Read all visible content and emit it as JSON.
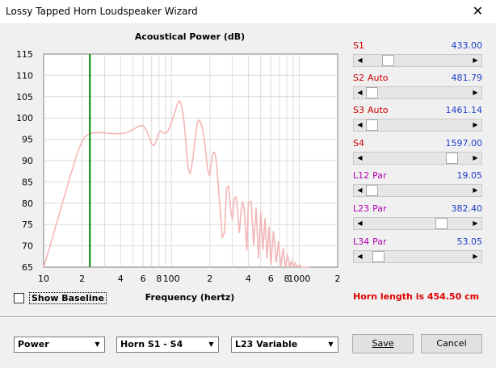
{
  "window": {
    "title": "Lossy Tapped Horn Loudspeaker Wizard",
    "close_glyph": "✕"
  },
  "chart_data": {
    "type": "line",
    "title": "Acoustical Power (dB)",
    "xlabel": "Frequency (hertz)",
    "ylabel": "",
    "x_scale": "log",
    "xlim": [
      10,
      2000
    ],
    "ylim": [
      65,
      115
    ],
    "grid": true,
    "yticks": [
      "115",
      "110",
      "105",
      "100",
      "95",
      "90",
      "85",
      "80",
      "75",
      "70",
      "65"
    ],
    "xticks": [
      {
        "v": 10,
        "label": "10"
      },
      {
        "v": 20,
        "label": "2"
      },
      {
        "v": 40,
        "label": "4"
      },
      {
        "v": 60,
        "label": "6"
      },
      {
        "v": 80,
        "label": "8"
      },
      {
        "v": 100,
        "label": "100"
      },
      {
        "v": 200,
        "label": "2"
      },
      {
        "v": 400,
        "label": "4"
      },
      {
        "v": 600,
        "label": "6"
      },
      {
        "v": 800,
        "label": "8"
      },
      {
        "v": 1000,
        "label": "1000"
      },
      {
        "v": 2000,
        "label": "2"
      }
    ],
    "marker_x": 23,
    "curve_color": "#f4b6b6",
    "marker_color": "#008000",
    "series": [
      {
        "x": [
          10,
          11,
          12,
          13,
          14,
          15,
          16,
          17,
          18,
          19,
          20,
          21,
          22,
          23,
          24,
          25,
          27,
          30,
          33,
          36,
          40,
          44,
          48,
          52,
          55,
          58,
          61,
          64,
          67,
          70,
          73,
          76,
          79,
          82,
          85,
          88,
          91,
          94,
          97,
          100,
          104,
          108,
          112,
          116,
          120,
          124,
          128,
          132,
          136,
          140,
          145,
          150,
          155,
          160,
          165,
          170,
          175,
          180,
          185,
          190,
          195,
          200,
          205,
          210,
          215,
          220,
          225,
          230,
          240,
          250,
          260,
          270,
          280,
          290,
          300,
          310,
          320,
          330,
          340,
          350,
          360,
          370,
          380,
          390,
          400,
          420,
          440,
          460,
          480,
          500,
          520,
          540,
          560,
          580,
          600,
          630,
          660,
          690,
          720,
          750,
          780,
          810,
          840,
          870,
          900,
          930,
          960,
          1000,
          1050,
          1100,
          1150,
          1200
        ],
        "y": [
          65,
          69,
          73,
          76.5,
          80,
          83,
          86,
          88.5,
          91,
          93,
          94.5,
          95.5,
          96,
          96.3,
          96.5,
          96.5,
          96.6,
          96.5,
          96.4,
          96.3,
          96.3,
          96.5,
          97,
          97.6,
          98,
          98.3,
          98,
          97,
          95.5,
          93.8,
          93.5,
          94.6,
          96.4,
          97,
          96.6,
          96.4,
          96.5,
          97,
          97.8,
          99,
          100.5,
          102,
          103.5,
          104,
          103,
          100.5,
          96.5,
          91.5,
          87.7,
          87,
          89,
          92.5,
          96,
          99,
          99.5,
          98.8,
          97.5,
          95.5,
          92.5,
          89,
          87,
          86.5,
          89.3,
          91.5,
          92,
          91.5,
          89.5,
          86,
          79,
          72,
          73,
          83.5,
          84,
          79,
          76,
          81,
          81.5,
          78,
          73,
          78,
          80.5,
          79,
          74,
          69,
          80,
          80.5,
          70,
          79,
          67,
          78,
          69,
          76.5,
          67,
          74.5,
          65.5,
          73.5,
          66,
          71,
          65,
          69.5,
          65,
          68,
          65,
          66.5,
          65,
          66,
          65,
          65.5,
          65,
          65,
          65,
          65
        ]
      }
    ]
  },
  "controls": {
    "params": [
      {
        "name": "S1",
        "tag": "",
        "value": "433.00",
        "thumb": 0.18
      },
      {
        "name": "S2",
        "tag": "Auto",
        "value": "481.79",
        "thumb": 0.0
      },
      {
        "name": "S3",
        "tag": "Auto",
        "value": "1461.14",
        "thumb": 0.0
      },
      {
        "name": "S4",
        "tag": "",
        "value": "1597.00",
        "thumb": 0.88
      },
      {
        "name": "L12",
        "tag": "Par",
        "value": "19.05",
        "thumb": 0.0
      },
      {
        "name": "L23",
        "tag": "Par",
        "value": "382.40",
        "thumb": 0.76
      },
      {
        "name": "L34",
        "tag": "Par",
        "value": "53.05",
        "thumb": 0.07
      }
    ],
    "name_color_red": "#cc0000",
    "name_color_purple": "#b000b0"
  },
  "show_baseline_label": "Show Baseline",
  "horn_length_text": "Horn length is 454.50 cm",
  "bottom": {
    "select1": "Power",
    "select2": "Horn S1 - S4",
    "select3": "L23 Variable",
    "save_label": "Save",
    "cancel_label": "Cancel"
  }
}
